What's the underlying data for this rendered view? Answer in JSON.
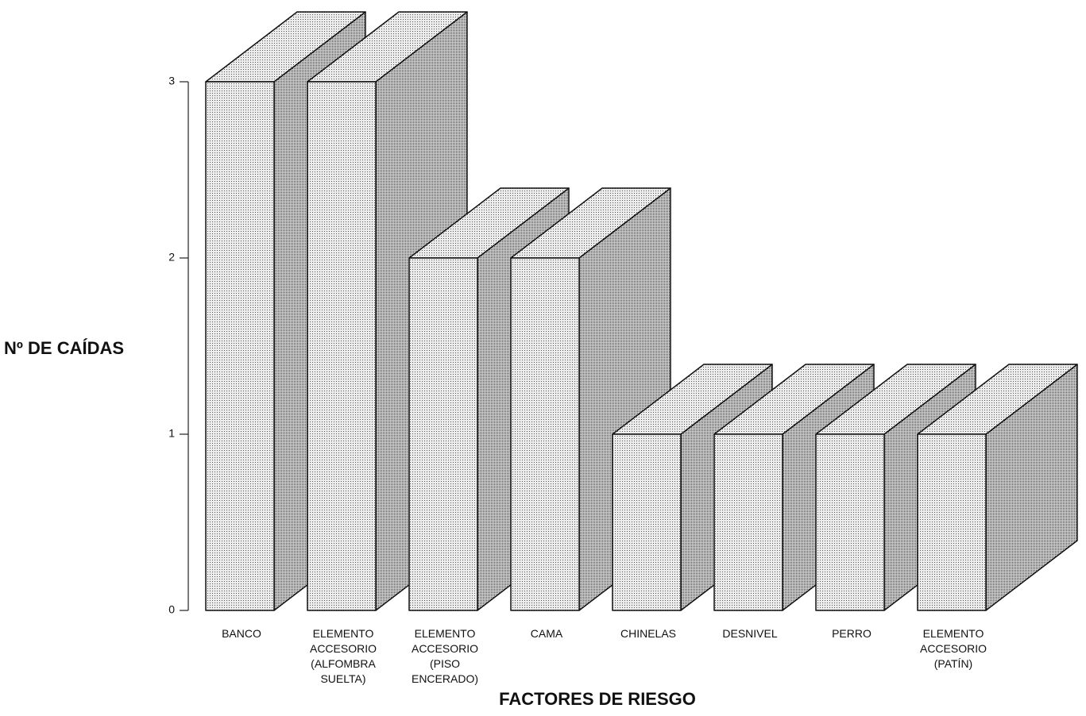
{
  "chart_data": {
    "type": "bar3d",
    "categories": [
      "BANCO",
      "ELEMENTO ACCESORIO (ALFOMBRA SUELTA)",
      "ELEMENTO ACCESORIO (PISO ENCERADO)",
      "CAMA",
      "CHINELAS",
      "DESNIVEL",
      "PERRO",
      "ELEMENTO ACCESORIO (PATÍN)"
    ],
    "values": [
      3,
      3,
      2,
      2,
      1,
      1,
      1,
      1
    ],
    "ylim": [
      0,
      3
    ],
    "yticks": [
      0,
      1,
      2,
      3
    ],
    "y_label": "Nº DE CAÍDAS",
    "x_label": "FACTORES DE RIESGO",
    "color": "#d9d9d9"
  }
}
